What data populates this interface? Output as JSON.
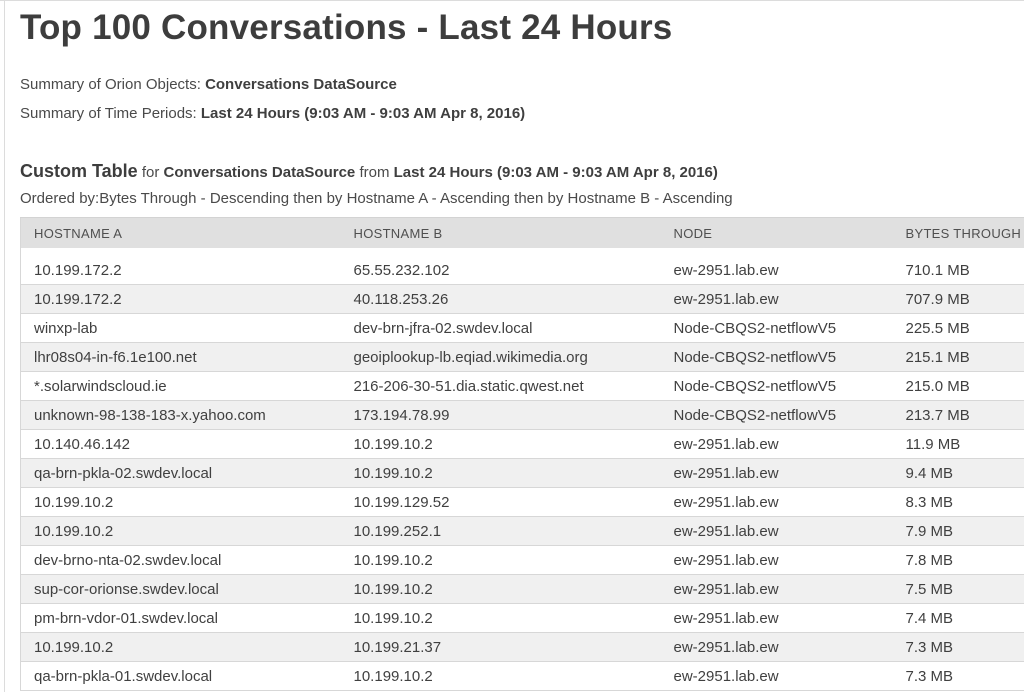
{
  "colors": {
    "header_bg": "#e0e0e0",
    "stripe_bg": "#f0f0f0",
    "border": "#d7d7d7",
    "frame": "#dcdcdc",
    "text": "#404040"
  },
  "page": {
    "title": "Top 100 Conversations - Last 24 Hours",
    "summaries": [
      {
        "label": "Summary of Orion Objects:",
        "value": "Conversations DataSource"
      },
      {
        "label": "Summary of Time Periods:",
        "value": "Last 24 Hours (9:03 AM - 9:03 AM Apr 8, 2016)"
      }
    ]
  },
  "table_section": {
    "heading": {
      "name": "Custom Table",
      "for_word": "for",
      "datasource": "Conversations DataSource",
      "from_word": "from",
      "period": "Last 24 Hours (9:03 AM - 9:03 AM Apr 8, 2016)"
    },
    "ordered_by": "Ordered by:Bytes Through - Descending then by Hostname A - Ascending then by Hostname B - Ascending",
    "columns": [
      "HOSTNAME A",
      "HOSTNAME B",
      "NODE",
      "BYTES THROUGH"
    ],
    "rows": [
      [
        "10.199.172.2",
        "65.55.232.102",
        "ew-2951.lab.ew",
        "710.1 MB"
      ],
      [
        "10.199.172.2",
        "40.118.253.26",
        "ew-2951.lab.ew",
        "707.9 MB"
      ],
      [
        "winxp-lab",
        "dev-brn-jfra-02.swdev.local",
        "Node-CBQS2-netflowV5",
        "225.5 MB"
      ],
      [
        "lhr08s04-in-f6.1e100.net",
        "geoiplookup-lb.eqiad.wikimedia.org",
        "Node-CBQS2-netflowV5",
        "215.1 MB"
      ],
      [
        "*.solarwindscloud.ie",
        "216-206-30-51.dia.static.qwest.net",
        "Node-CBQS2-netflowV5",
        "215.0 MB"
      ],
      [
        "unknown-98-138-183-x.yahoo.com",
        "173.194.78.99",
        "Node-CBQS2-netflowV5",
        "213.7 MB"
      ],
      [
        "10.140.46.142",
        "10.199.10.2",
        "ew-2951.lab.ew",
        "11.9 MB"
      ],
      [
        "qa-brn-pkla-02.swdev.local",
        "10.199.10.2",
        "ew-2951.lab.ew",
        "9.4 MB"
      ],
      [
        "10.199.10.2",
        "10.199.129.52",
        "ew-2951.lab.ew",
        "8.3 MB"
      ],
      [
        "10.199.10.2",
        "10.199.252.1",
        "ew-2951.lab.ew",
        "7.9 MB"
      ],
      [
        "dev-brno-nta-02.swdev.local",
        "10.199.10.2",
        "ew-2951.lab.ew",
        "7.8 MB"
      ],
      [
        "sup-cor-orionse.swdev.local",
        "10.199.10.2",
        "ew-2951.lab.ew",
        "7.5 MB"
      ],
      [
        "pm-brn-vdor-01.swdev.local",
        "10.199.10.2",
        "ew-2951.lab.ew",
        "7.4 MB"
      ],
      [
        "10.199.10.2",
        "10.199.21.37",
        "ew-2951.lab.ew",
        "7.3 MB"
      ],
      [
        "qa-brn-pkla-01.swdev.local",
        "10.199.10.2",
        "ew-2951.lab.ew",
        "7.3 MB"
      ]
    ]
  }
}
